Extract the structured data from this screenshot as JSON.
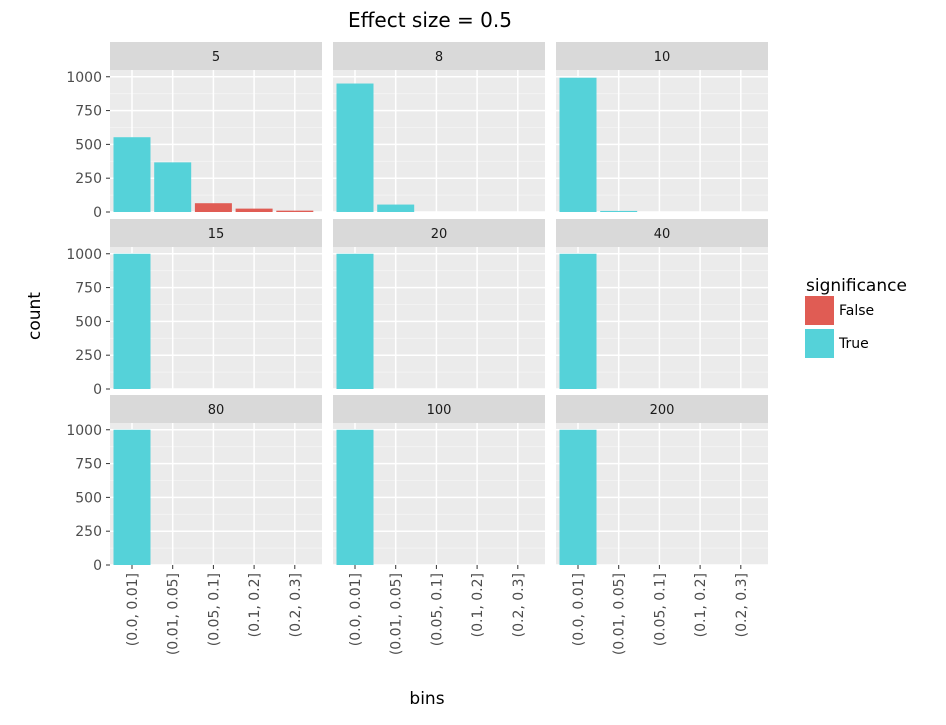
{
  "chart_data": {
    "type": "bar",
    "title": "Effect size = 0.5",
    "xlabel": "bins",
    "ylabel": "count",
    "categories": [
      "(0.0, 0.01]",
      "(0.01, 0.05]",
      "(0.05, 0.1]",
      "(0.1, 0.2]",
      "(0.2, 0.3]"
    ],
    "ylim": [
      0,
      1050
    ],
    "yticks": [
      0,
      250,
      500,
      750,
      1000
    ],
    "grid": true,
    "legend": {
      "title": "significance",
      "placement": "right",
      "entries": [
        {
          "label": "False",
          "color": "#e05c54"
        },
        {
          "label": "True",
          "color": "#55d2d9"
        }
      ]
    },
    "colors": {
      "False": "#e05c54",
      "True": "#55d2d9"
    },
    "facets": [
      {
        "label": "5",
        "bars": [
          {
            "category": "(0.0, 0.01]",
            "value": 553,
            "significance": "True"
          },
          {
            "category": "(0.01, 0.05]",
            "value": 367,
            "significance": "True"
          },
          {
            "category": "(0.05, 0.1]",
            "value": 65,
            "significance": "False"
          },
          {
            "category": "(0.1, 0.2]",
            "value": 25,
            "significance": "False"
          },
          {
            "category": "(0.2, 0.3]",
            "value": 10,
            "significance": "False"
          }
        ]
      },
      {
        "label": "8",
        "bars": [
          {
            "category": "(0.0, 0.01]",
            "value": 950,
            "significance": "True"
          },
          {
            "category": "(0.01, 0.05]",
            "value": 55,
            "significance": "True"
          }
        ]
      },
      {
        "label": "10",
        "bars": [
          {
            "category": "(0.0, 0.01]",
            "value": 993,
            "significance": "True"
          },
          {
            "category": "(0.01, 0.05]",
            "value": 8,
            "significance": "True"
          }
        ]
      },
      {
        "label": "15",
        "bars": [
          {
            "category": "(0.0, 0.01]",
            "value": 1000,
            "significance": "True"
          }
        ]
      },
      {
        "label": "20",
        "bars": [
          {
            "category": "(0.0, 0.01]",
            "value": 1000,
            "significance": "True"
          }
        ]
      },
      {
        "label": "40",
        "bars": [
          {
            "category": "(0.0, 0.01]",
            "value": 1000,
            "significance": "True"
          }
        ]
      },
      {
        "label": "80",
        "bars": [
          {
            "category": "(0.0, 0.01]",
            "value": 1000,
            "significance": "True"
          }
        ]
      },
      {
        "label": "100",
        "bars": [
          {
            "category": "(0.0, 0.01]",
            "value": 1000,
            "significance": "True"
          }
        ]
      },
      {
        "label": "200",
        "bars": [
          {
            "category": "(0.0, 0.01]",
            "value": 1000,
            "significance": "True"
          }
        ]
      }
    ]
  }
}
